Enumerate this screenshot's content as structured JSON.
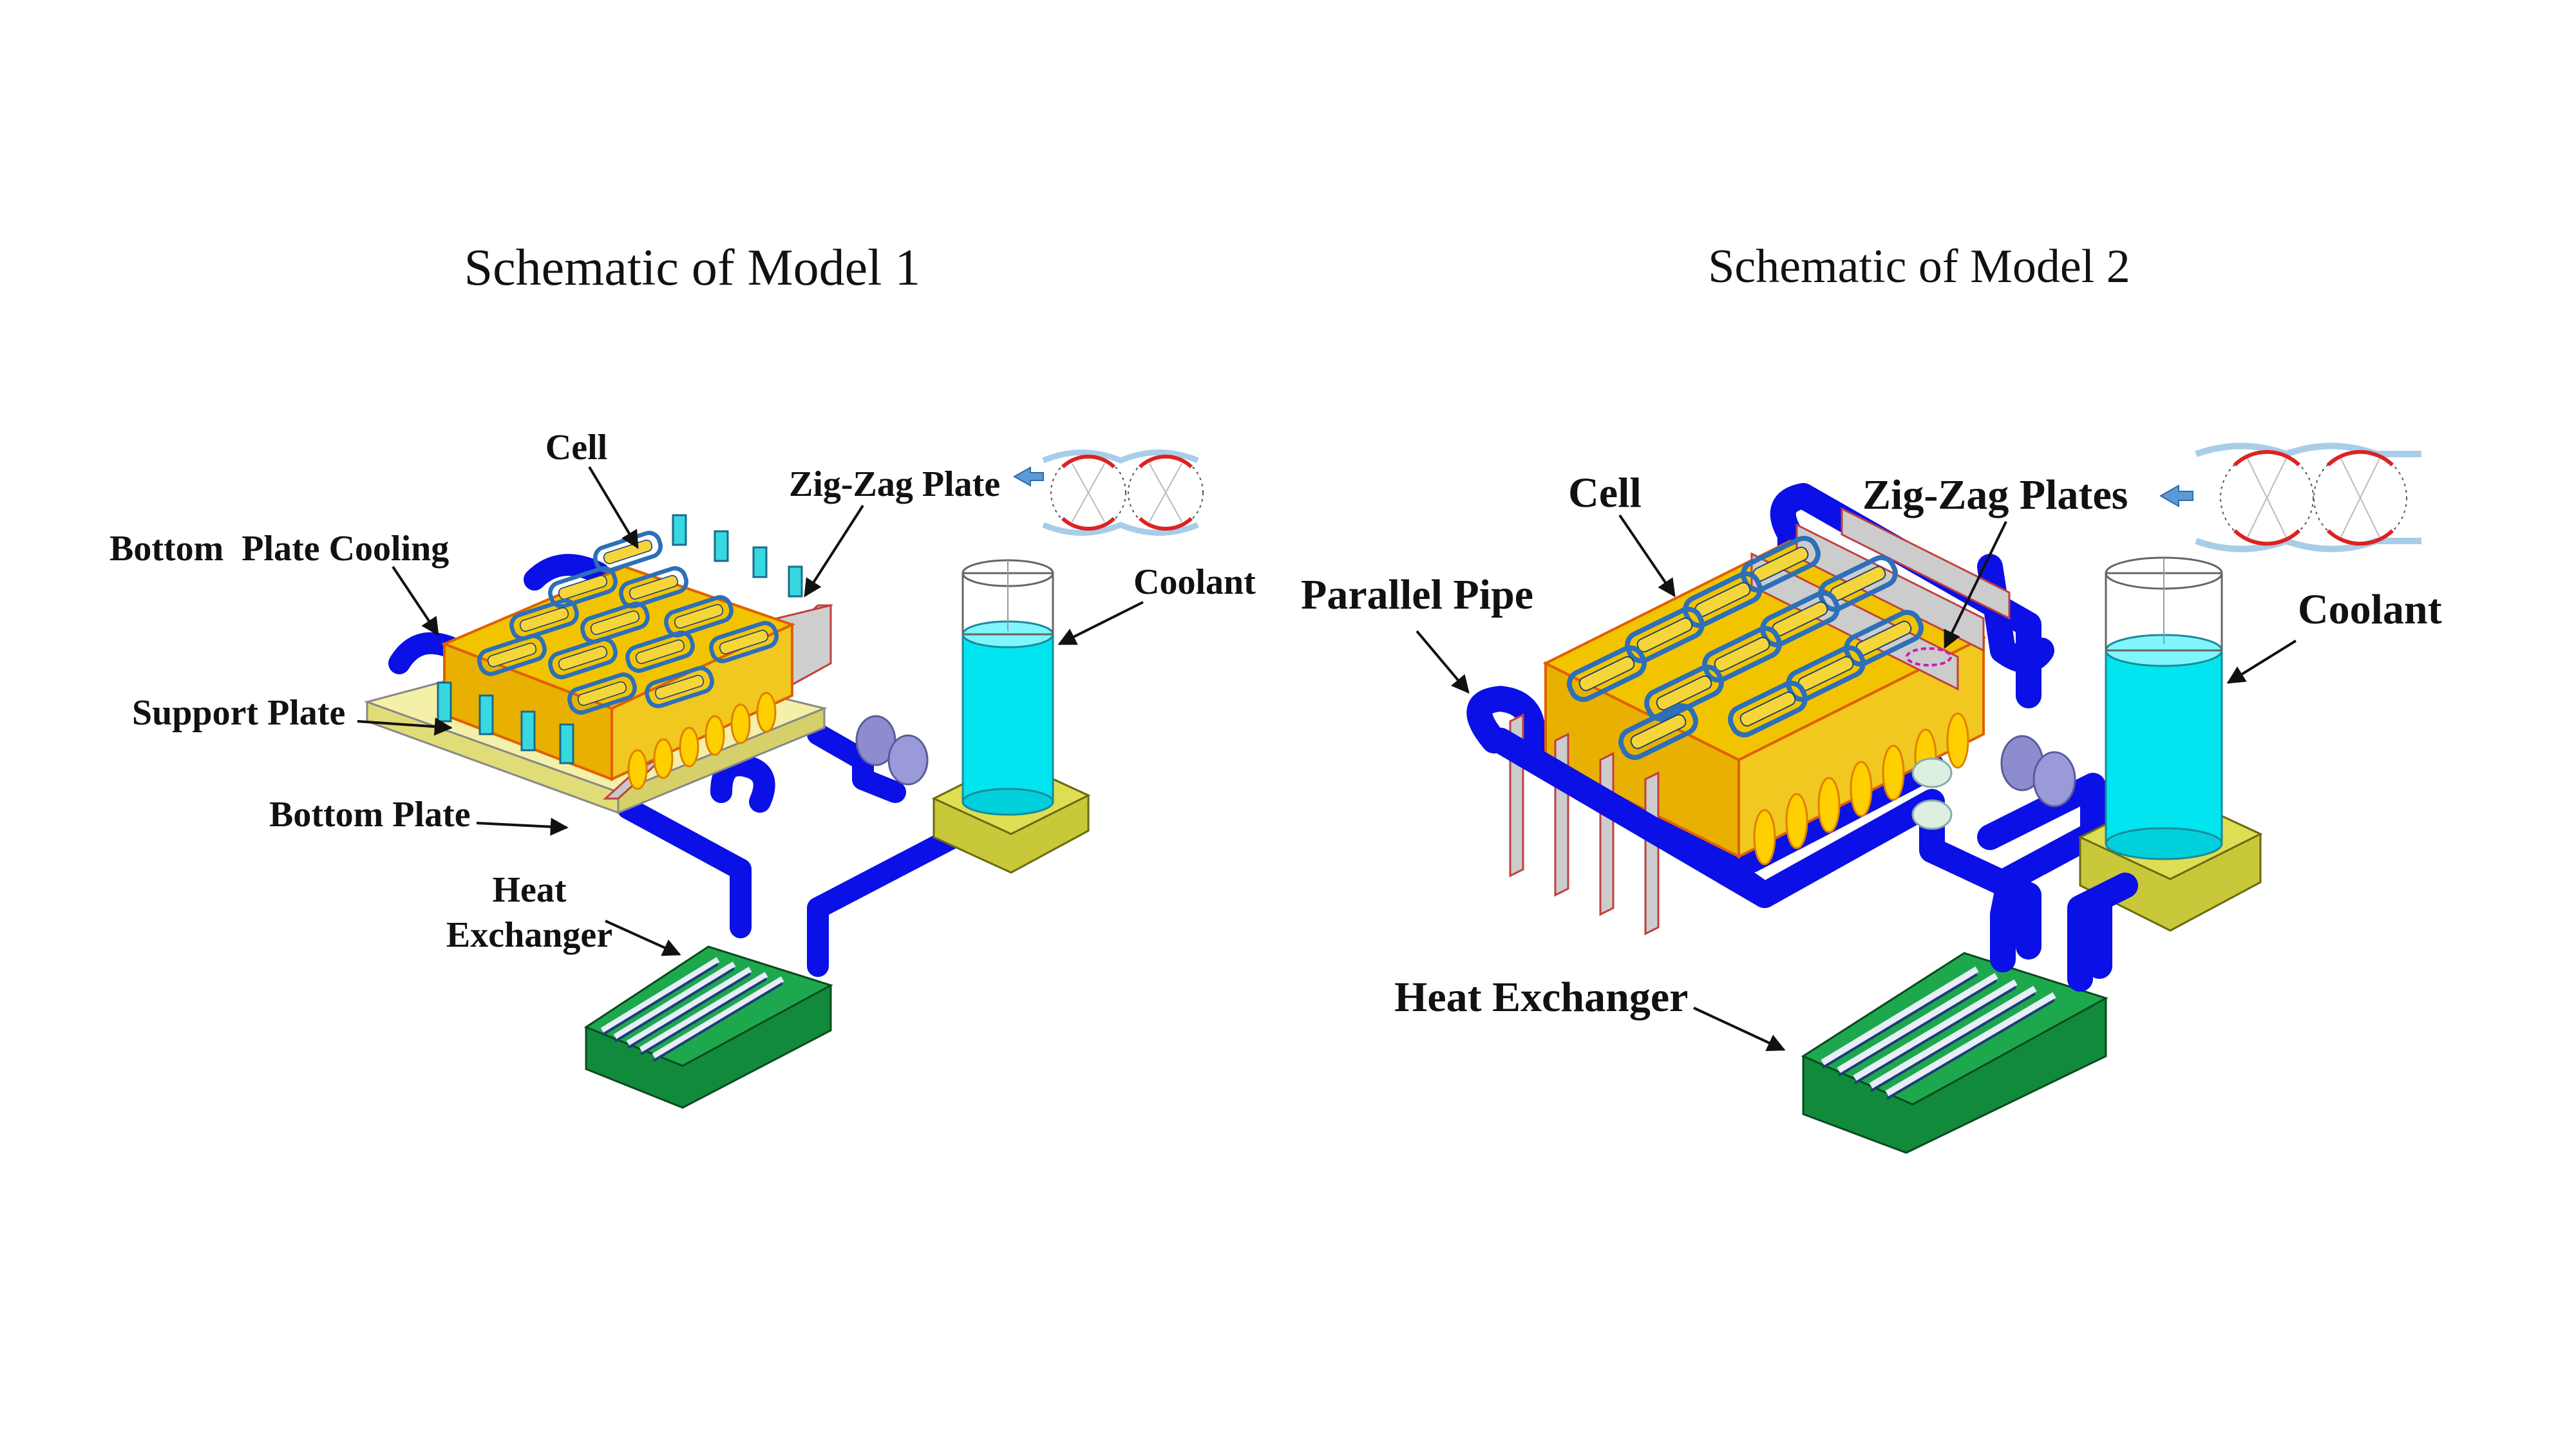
{
  "model1": {
    "title": "Schematic of Model 1",
    "labels": {
      "cell": "Cell",
      "bottom_plate_cooling": "Bottom  Plate Cooling",
      "zigzag_plate": "Zig-Zag Plate",
      "coolant": "Coolant",
      "support_plate": "Support Plate",
      "bottom_plate": "Bottom Plate",
      "heat_exchanger_line1": "Heat",
      "heat_exchanger_line2": "Exchanger"
    }
  },
  "model2": {
    "title": "Schematic of Model 2",
    "labels": {
      "cell": "Cell",
      "zigzag_plates": "Zig-Zag Plates",
      "parallel_pipe": "Parallel Pipe",
      "coolant": "Coolant",
      "heat_exchanger": "Heat Exchanger"
    }
  },
  "colors": {
    "pipe": "#0a10e6",
    "coolant": "#00e5f0",
    "coolant_base": "#c8c83a",
    "heat_exchanger": "#169a46",
    "cell_fill": "#f2c400",
    "cell_outline": "#2d6fb8",
    "zigzag_plate": "#c8c8c8",
    "support_plate": "#f4f0a8",
    "connector": "#8c8ccf",
    "zoom_arrow": "#5b9bd5",
    "zoom_wave": "#a8cde8",
    "contact_red": "#dd2222"
  }
}
